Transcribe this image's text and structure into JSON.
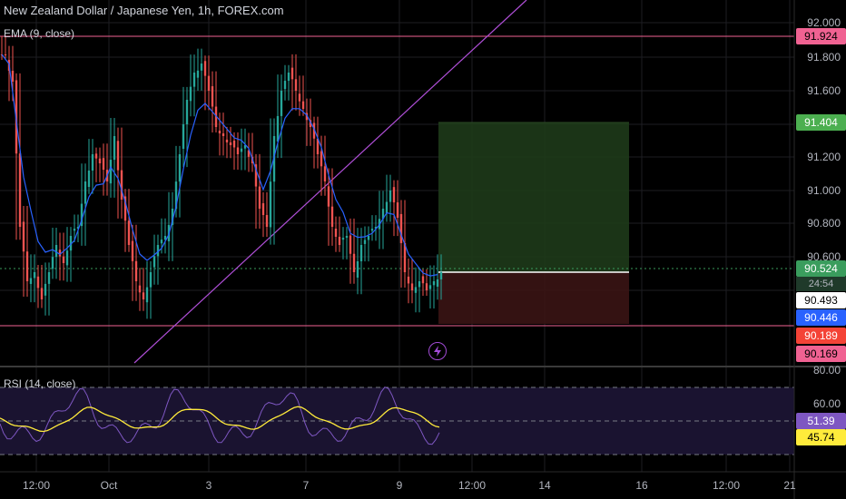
{
  "header": {
    "title": "New Zealand Dollar / Japanese Yen, 1h, FOREX.com",
    "ema_label": "EMA (9, close)",
    "rsi_label": "RSI (14, close)"
  },
  "price_axis": {
    "ticks": [
      "92.000",
      "91.800",
      "91.600",
      "91.200",
      "91.000",
      "90.800",
      "90.600"
    ]
  },
  "rsi_axis": {
    "ticks": [
      "80.00",
      "60.00"
    ]
  },
  "price_tags": {
    "resistance": "91.924",
    "take_profit": "91.404",
    "last_price": "90.524",
    "countdown": "24:54",
    "crosshair": "90.493",
    "ema_value": "90.446",
    "stop_loss": "90.189",
    "support": "90.169"
  },
  "rsi_tags": {
    "rsi_value": "51.39",
    "rsi_ma_value": "45.74"
  },
  "time_axis": {
    "ticks": [
      "12:00",
      "Oct",
      "3",
      "7",
      "9",
      "12:00",
      "14",
      "16",
      "12:00",
      "21"
    ]
  },
  "colors": {
    "background": "#000000",
    "bull": "#26a69a",
    "bear": "#ef5350",
    "ema": "#2962ff",
    "trendline": "#b04fd8",
    "resistance": "#f06292",
    "take_profit": "#4caf50",
    "last_price": "#3a9d5d",
    "ema_tag": "#2962ff",
    "stop_loss": "#f44336",
    "rsi": "#7e57c2",
    "rsi_ma": "#ffeb3b"
  },
  "icons": {
    "flash": "lightning-bolt-icon"
  }
}
